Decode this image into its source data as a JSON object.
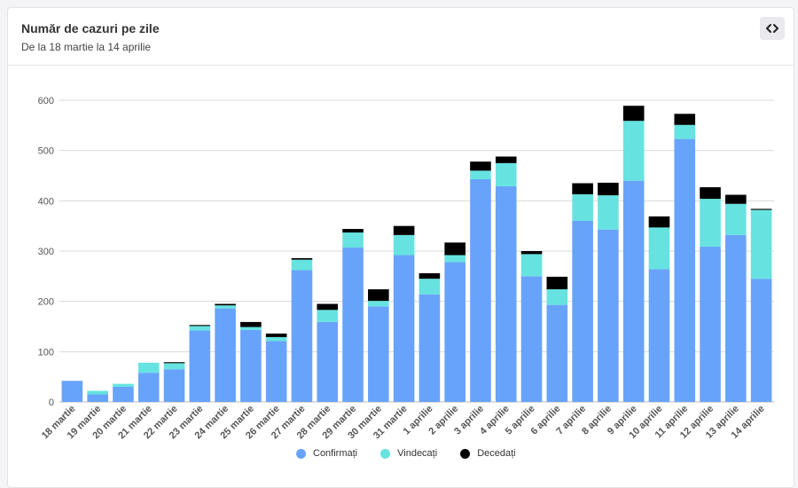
{
  "card": {
    "title": "Număr de cazuri pe zile",
    "subtitle": "De la 18 martie la 14 aprilie",
    "embed_icon": "code-icon"
  },
  "chart_data": {
    "type": "bar",
    "stacked": true,
    "title": "Număr de cazuri pe zile",
    "subtitle": "De la 18 martie la 14 aprilie",
    "xlabel": "",
    "ylabel": "",
    "ylim": [
      0,
      600
    ],
    "yticks": [
      0,
      100,
      200,
      300,
      400,
      500,
      600
    ],
    "grid": true,
    "legend_position": "bottom-center",
    "categories": [
      "18 martie",
      "19 martie",
      "20 martie",
      "21 martie",
      "22 martie",
      "23 martie",
      "24 martie",
      "25 martie",
      "26 martie",
      "27 martie",
      "28 martie",
      "29 martie",
      "30 martie",
      "31 martie",
      "1 aprilie",
      "2 aprilie",
      "3 aprilie",
      "4 aprilie",
      "5 aprilie",
      "6 aprilie",
      "7 aprilie",
      "8 aprilie",
      "9 aprilie",
      "10 aprilie",
      "11 aprilie",
      "12 aprilie",
      "13 aprilie",
      "14 aprilie"
    ],
    "series": [
      {
        "name": "Confirmați",
        "color": "#68a3fb",
        "values": [
          42,
          15,
          30,
          58,
          65,
          142,
          186,
          143,
          121,
          262,
          159,
          307,
          190,
          292,
          214,
          278,
          443,
          429,
          250,
          193,
          360,
          343,
          440,
          264,
          523,
          309,
          332,
          245
        ]
      },
      {
        "name": "Vindecați",
        "color": "#66e3e0",
        "values": [
          0,
          7,
          6,
          20,
          12,
          9,
          6,
          6,
          8,
          21,
          24,
          30,
          11,
          40,
          31,
          14,
          17,
          46,
          44,
          31,
          53,
          68,
          119,
          83,
          28,
          95,
          62,
          137
        ]
      },
      {
        "name": "Decedați",
        "color": "#000000",
        "values": [
          0,
          0,
          0,
          0,
          2,
          2,
          3,
          10,
          7,
          3,
          12,
          7,
          23,
          18,
          11,
          25,
          18,
          13,
          6,
          25,
          22,
          25,
          30,
          22,
          22,
          23,
          18,
          2
        ]
      }
    ]
  }
}
